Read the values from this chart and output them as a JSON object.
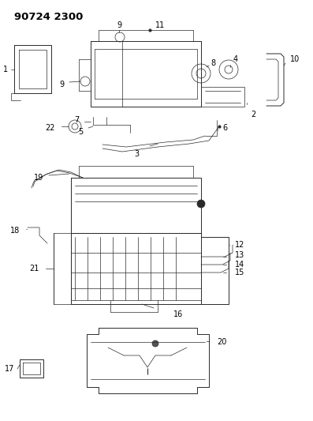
{
  "title": "90724 2300",
  "bg_color": "#ffffff",
  "line_color": "#2a2a2a",
  "label_color": "#000000",
  "title_fontsize": 9.5,
  "label_fontsize": 7
}
